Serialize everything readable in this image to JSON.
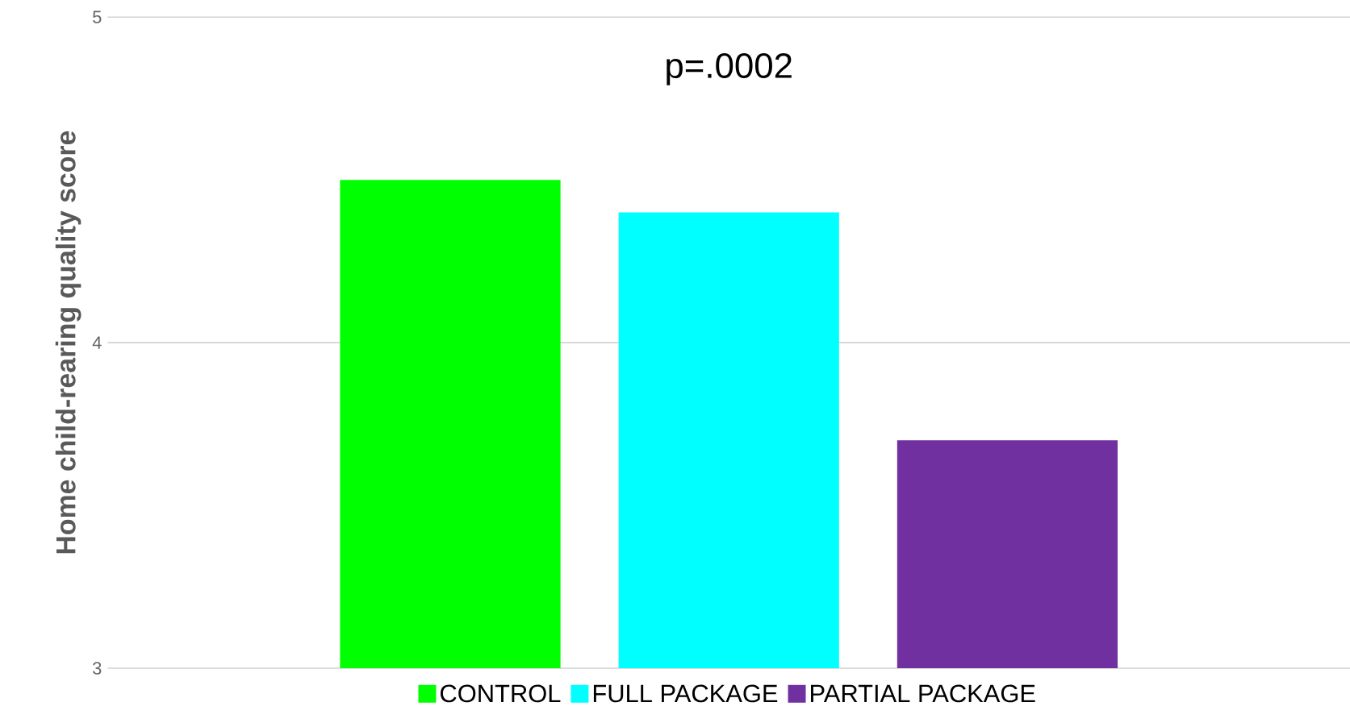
{
  "chart_data": {
    "type": "bar",
    "ylabel": "Home child-rearing quality score",
    "categories": [
      null
    ],
    "series": [
      {
        "name": "CONTROL",
        "color": "#00ff00",
        "values": [
          4.5
        ]
      },
      {
        "name": "FULL PACKAGE",
        "color": "#00ffff",
        "values": [
          4.4
        ]
      },
      {
        "name": "PARTIAL PACKAGE",
        "color": "#7030a0",
        "values": [
          3.7
        ]
      }
    ],
    "ylim": [
      3,
      5
    ],
    "yticks": [
      3,
      4,
      5
    ],
    "grid": "y",
    "legend": "bottom",
    "annotations": [
      "p=.0002"
    ]
  }
}
